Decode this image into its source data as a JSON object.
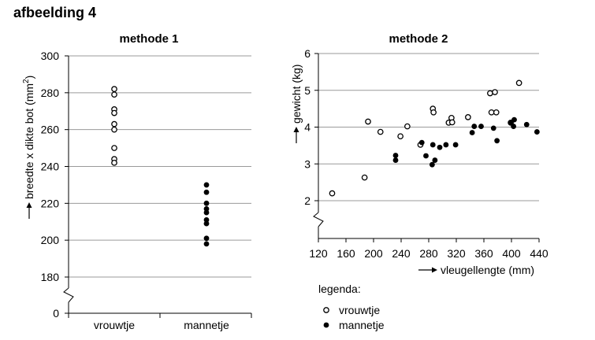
{
  "page": {
    "title": "afbeelding 4"
  },
  "chart_data": [
    {
      "type": "scatter",
      "title": "methode 1",
      "categories": [
        "vrouwtje",
        "mannetje"
      ],
      "ylabel": "breedte x dikte bot (mm²)",
      "ylabel_main": "breedte x dikte bot (mm",
      "ylabel_sup": "2",
      "ylabel_end": ")",
      "ylim": [
        180,
        300
      ],
      "yticks": [
        0,
        180,
        200,
        220,
        240,
        260,
        280,
        300
      ],
      "axis_break": true,
      "grid": true,
      "series": [
        {
          "name": "vrouwtje",
          "category": "vrouwtje",
          "marker": "open",
          "values": [
            282,
            279,
            271,
            269,
            263,
            260,
            250,
            244,
            242
          ]
        },
        {
          "name": "mannetje",
          "category": "mannetje",
          "marker": "filled",
          "values": [
            230,
            226,
            220,
            217,
            215,
            211,
            209,
            201,
            198
          ]
        }
      ]
    },
    {
      "type": "scatter",
      "title": "methode 2",
      "xlabel": "vleugellengte (mm)",
      "ylabel": "gewicht (kg)",
      "xlim": [
        120,
        440
      ],
      "ylim": [
        2,
        6
      ],
      "xticks": [
        120,
        160,
        200,
        240,
        280,
        320,
        360,
        400,
        440
      ],
      "xticklabels": [
        "120",
        "160",
        "200",
        "240",
        "280",
        "320",
        "360",
        "400",
        "440"
      ],
      "yticks": [
        2,
        3,
        4,
        5,
        6
      ],
      "axis_break": true,
      "grid": true,
      "series": [
        {
          "name": "vrouwtje",
          "marker": "open",
          "points": [
            [
              140,
              2.2
            ],
            [
              187,
              2.63
            ],
            [
              192,
              4.15
            ],
            [
              210,
              3.87
            ],
            [
              239,
              3.75
            ],
            [
              249,
              4.02
            ],
            [
              268,
              3.52
            ],
            [
              286,
              4.5
            ],
            [
              287,
              4.4
            ],
            [
              309,
              4.12
            ],
            [
              313,
              4.25
            ],
            [
              314,
              4.13
            ],
            [
              337,
              4.27
            ],
            [
              369,
              4.92
            ],
            [
              371,
              4.4
            ],
            [
              376,
              4.95
            ],
            [
              378,
              4.4
            ],
            [
              399,
              4.12
            ],
            [
              411,
              5.2
            ]
          ]
        },
        {
          "name": "mannetje",
          "marker": "filled",
          "points": [
            [
              232,
              3.23
            ],
            [
              232,
              3.1
            ],
            [
              270,
              3.58
            ],
            [
              276,
              3.22
            ],
            [
              285,
              2.98
            ],
            [
              286,
              3.52
            ],
            [
              289,
              3.1
            ],
            [
              296,
              3.45
            ],
            [
              305,
              3.52
            ],
            [
              319,
              3.52
            ],
            [
              343,
              3.85
            ],
            [
              346,
              4.02
            ],
            [
              356,
              4.02
            ],
            [
              374,
              3.97
            ],
            [
              379,
              3.63
            ],
            [
              399,
              4.12
            ],
            [
              403,
              4.02
            ],
            [
              404,
              4.2
            ],
            [
              422,
              4.07
            ],
            [
              437,
              3.87
            ]
          ]
        }
      ]
    }
  ],
  "legend": {
    "title": "legenda:",
    "items": [
      {
        "label": "vrouwtje",
        "marker": "open"
      },
      {
        "label": "mannetje",
        "marker": "filled"
      }
    ]
  }
}
